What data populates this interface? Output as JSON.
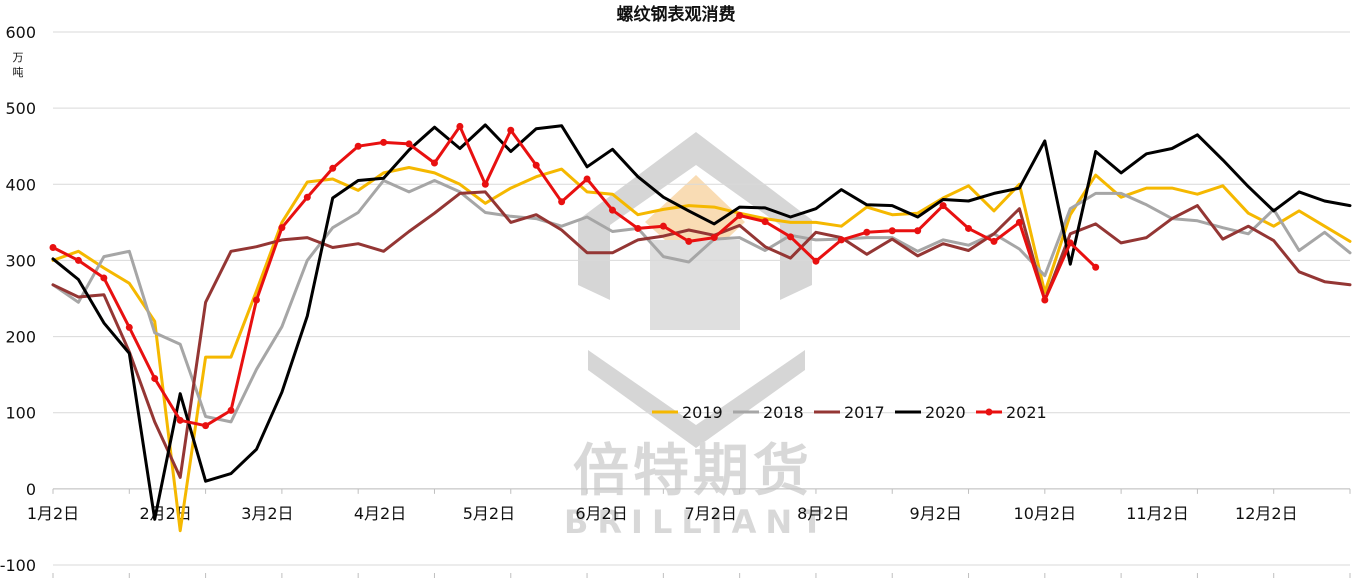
{
  "chart_data": {
    "type": "line",
    "title": "螺纹钢表观消费",
    "unit_label": "万\n吨",
    "ylim": [
      -100,
      600
    ],
    "y_ticks": [
      -100,
      0,
      100,
      200,
      300,
      400,
      500,
      600
    ],
    "x_range_weeks": [
      0,
      51
    ],
    "x_ticks": [
      {
        "label": "1月2日",
        "week": 0
      },
      {
        "label": "2月2日",
        "week": 4.43
      },
      {
        "label": "3月2日",
        "week": 8.43
      },
      {
        "label": "4月2日",
        "week": 12.86
      },
      {
        "label": "5月2日",
        "week": 17.14
      },
      {
        "label": "6月2日",
        "week": 21.57
      },
      {
        "label": "7月2日",
        "week": 25.86
      },
      {
        "label": "8月2日",
        "week": 30.29
      },
      {
        "label": "9月2日",
        "week": 34.71
      },
      {
        "label": "10月2日",
        "week": 39.0
      },
      {
        "label": "11月2日",
        "week": 43.43
      },
      {
        "label": "12月2日",
        "week": 47.71
      }
    ],
    "grid": "horizontal",
    "legend_position": "center-right, inside plot",
    "series": [
      {
        "name": "2019",
        "color": "#f5b800",
        "markers": false,
        "values": [
          300,
          312,
          290,
          270,
          220,
          -55,
          173,
          173,
          260,
          350,
          403,
          407,
          392,
          415,
          422,
          415,
          400,
          375,
          395,
          410,
          420,
          390,
          387,
          360,
          367,
          372,
          370,
          362,
          355,
          350,
          350,
          345,
          370,
          360,
          362,
          382,
          398,
          365,
          400,
          258,
          360,
          412,
          383,
          395,
          395,
          387,
          398,
          362,
          345,
          365,
          345,
          325
        ]
      },
      {
        "name": "2018",
        "color": "#a6a6a6",
        "markers": false,
        "values": [
          268,
          245,
          305,
          312,
          205,
          190,
          95,
          88,
          157,
          213,
          300,
          343,
          363,
          405,
          390,
          405,
          390,
          363,
          358,
          355,
          345,
          357,
          338,
          342,
          305,
          298,
          328,
          330,
          313,
          333,
          327,
          328,
          330,
          330,
          312,
          327,
          320,
          335,
          315,
          280,
          368,
          388,
          388,
          373,
          355,
          352,
          343,
          335,
          367,
          313,
          337,
          310
        ]
      },
      {
        "name": "2017",
        "color": "#943634",
        "markers": false,
        "values": [
          268,
          252,
          255,
          180,
          88,
          15,
          245,
          312,
          318,
          327,
          330,
          317,
          322,
          312,
          338,
          362,
          388,
          390,
          350,
          360,
          340,
          310,
          310,
          327,
          332,
          340,
          333,
          346,
          318,
          303,
          337,
          330,
          308,
          328,
          306,
          322,
          313,
          335,
          368,
          248,
          335,
          348,
          323,
          330,
          355,
          372,
          328,
          345,
          326,
          285,
          272,
          268
        ]
      },
      {
        "name": "2020",
        "color": "#000000",
        "markers": false,
        "values": [
          302,
          275,
          218,
          178,
          -40,
          125,
          10,
          20,
          52,
          127,
          227,
          382,
          405,
          408,
          445,
          475,
          447,
          478,
          443,
          473,
          477,
          423,
          446,
          410,
          383,
          365,
          348,
          370,
          369,
          357,
          368,
          393,
          373,
          372,
          357,
          380,
          378,
          388,
          395,
          457,
          295,
          443,
          415,
          440,
          447,
          465,
          432,
          397,
          365,
          390,
          378,
          372
        ]
      },
      {
        "name": "2021",
        "color": "#e81010",
        "markers": true,
        "values": [
          317,
          300,
          277,
          212,
          145,
          90,
          83,
          103,
          248,
          343,
          383,
          421,
          450,
          455,
          453,
          428,
          476,
          400,
          471,
          425,
          377,
          407,
          366,
          342,
          345,
          325,
          330,
          359,
          351,
          331,
          299,
          327,
          337,
          339,
          339,
          372,
          342,
          325,
          350,
          248,
          323,
          291
        ]
      }
    ]
  },
  "watermark": {
    "chinese": "倍特期货",
    "english": "BRILLIANT"
  }
}
